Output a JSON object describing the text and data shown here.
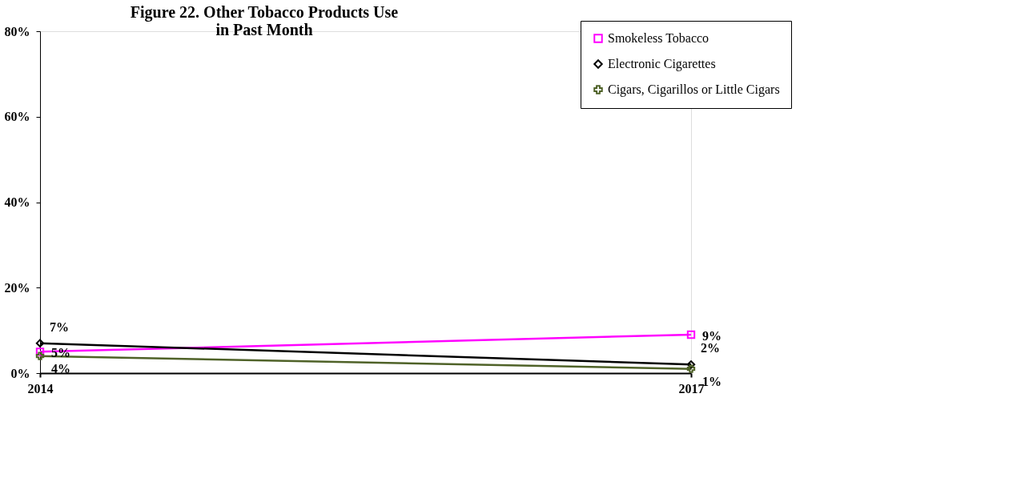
{
  "chart_data": {
    "type": "line",
    "title": "Figure 22. Other Tobacco Products Use in Past Month",
    "categories": [
      "2014",
      "2017"
    ],
    "ylim": [
      0,
      80
    ],
    "yticks": [
      {
        "value": 0,
        "label": "0%"
      },
      {
        "value": 20,
        "label": "20%"
      },
      {
        "value": 40,
        "label": "40%"
      },
      {
        "value": 60,
        "label": "60%"
      },
      {
        "value": 80,
        "label": "80%"
      }
    ],
    "grid": false,
    "legend": "top right",
    "series": [
      {
        "name": "Smokeless Tobacco",
        "color": "#ff00ff",
        "marker": "square",
        "values": [
          5,
          9
        ],
        "value_labels": [
          "5%",
          "9%"
        ]
      },
      {
        "name": "Electronic Cigarettes",
        "color": "#000000",
        "marker": "diamond",
        "values": [
          7,
          2
        ],
        "value_labels": [
          "7%",
          "2%"
        ]
      },
      {
        "name": "Cigars, Cigarillos or Little Cigars",
        "color": "#4f6228",
        "marker": "cross",
        "values": [
          4,
          1
        ],
        "value_labels": [
          "4%",
          "1%"
        ]
      }
    ]
  }
}
